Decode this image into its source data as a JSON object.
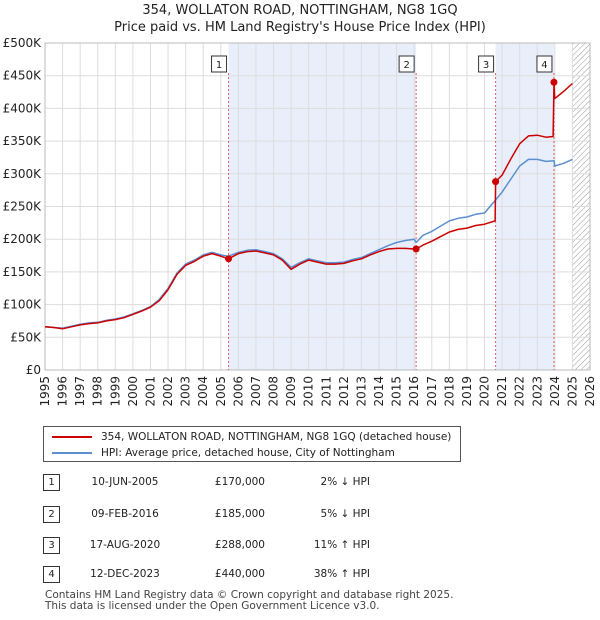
{
  "title_line1": "354, WOLLATON ROAD, NOTTINGHAM, NG8 1GQ",
  "title_line2": "Price paid vs. HM Land Registry's House Price Index (HPI)",
  "colors": {
    "property_line": "#cc0000",
    "hpi_line": "#5b8fd0",
    "shade": "#e8eefa",
    "marker_line": "#e06060",
    "grid": "#dddddd"
  },
  "legend": {
    "property": "354, WOLLATON ROAD, NOTTINGHAM, NG8 1GQ (detached house)",
    "hpi": "HPI: Average price, detached house, City of Nottingham"
  },
  "transactions": [
    {
      "num": "1",
      "date": "10-JUN-2005",
      "price": "£170,000",
      "hpi": "2% ↓ HPI"
    },
    {
      "num": "2",
      "date": "09-FEB-2016",
      "price": "£185,000",
      "hpi": "5% ↓ HPI"
    },
    {
      "num": "3",
      "date": "17-AUG-2020",
      "price": "£288,000",
      "hpi": "11% ↑ HPI"
    },
    {
      "num": "4",
      "date": "12-DEC-2023",
      "price": "£440,000",
      "hpi": "38% ↑ HPI"
    }
  ],
  "footer_line1": "Contains HM Land Registry data © Crown copyright and database right 2025.",
  "footer_line2": "This data is licensed under the Open Government Licence v3.0.",
  "chart_data": {
    "type": "line",
    "title": "354, WOLLATON ROAD, NOTTINGHAM, NG8 1GQ — Price paid vs. HM Land Registry's House Price Index (HPI)",
    "xlim": [
      1995,
      2026
    ],
    "ylim": [
      0,
      500000
    ],
    "x_ticks": [
      1995,
      1996,
      1997,
      1998,
      1999,
      2000,
      2001,
      2002,
      2003,
      2004,
      2005,
      2006,
      2007,
      2008,
      2009,
      2010,
      2011,
      2012,
      2013,
      2014,
      2015,
      2016,
      2017,
      2018,
      2019,
      2020,
      2021,
      2022,
      2023,
      2024,
      2025,
      2026
    ],
    "y_ticks": [
      0,
      50000,
      100000,
      150000,
      200000,
      250000,
      300000,
      350000,
      400000,
      450000,
      500000
    ],
    "y_tick_labels": [
      "£0",
      "£50K",
      "£100K",
      "£150K",
      "£200K",
      "£250K",
      "£300K",
      "£350K",
      "£400K",
      "£450K",
      "£500K"
    ],
    "shaded_ranges": [
      [
        2005.44,
        2016.11
      ],
      [
        2020.63,
        2023.95
      ]
    ],
    "future_hatch_from": 2025.0,
    "sales": [
      {
        "label": "1",
        "x": 2005.44,
        "y": 170000
      },
      {
        "label": "2",
        "x": 2016.11,
        "y": 185000
      },
      {
        "label": "3",
        "x": 2020.63,
        "y": 288000
      },
      {
        "label": "4",
        "x": 2023.95,
        "y": 440000
      }
    ],
    "series": [
      {
        "name": "HPI: Average price, detached house, City of Nottingham",
        "color": "#5b8fd0",
        "x": [
          1995,
          1995.5,
          1996,
          1996.5,
          1997,
          1997.5,
          1998,
          1998.5,
          1999,
          1999.5,
          2000,
          2000.5,
          2001,
          2001.5,
          2002,
          2002.5,
          2003,
          2003.5,
          2004,
          2004.5,
          2005,
          2005.44,
          2006,
          2006.5,
          2007,
          2007.5,
          2008,
          2008.5,
          2009,
          2009.5,
          2010,
          2010.5,
          2011,
          2011.5,
          2012,
          2012.5,
          2013,
          2013.5,
          2014,
          2014.5,
          2015,
          2015.5,
          2016,
          2016.11,
          2016.5,
          2017,
          2017.5,
          2018,
          2018.5,
          2019,
          2019.5,
          2020,
          2020.63,
          2021,
          2021.5,
          2022,
          2022.5,
          2023,
          2023.5,
          2023.95,
          2024,
          2024.5,
          2025
        ],
        "y": [
          66000,
          65000,
          64000,
          67000,
          70000,
          72000,
          73000,
          76000,
          78000,
          81000,
          86000,
          91000,
          97000,
          108000,
          125000,
          148000,
          162000,
          168000,
          176000,
          180000,
          176000,
          174000,
          180000,
          183000,
          184000,
          181000,
          178000,
          170000,
          157000,
          164000,
          170000,
          167000,
          164000,
          164000,
          165000,
          169000,
          172000,
          178000,
          184000,
          190000,
          195000,
          198000,
          200000,
          195000,
          206000,
          212000,
          220000,
          228000,
          232000,
          234000,
          238000,
          240000,
          260000,
          272000,
          292000,
          312000,
          322000,
          322000,
          319000,
          320000,
          312000,
          316000,
          322000
        ]
      },
      {
        "name": "354, WOLLATON ROAD, NOTTINGHAM, NG8 1GQ (detached house)",
        "color": "#cc0000",
        "x": [
          1995,
          1995.5,
          1996,
          1996.5,
          1997,
          1997.5,
          1998,
          1998.5,
          1999,
          1999.5,
          2000,
          2000.5,
          2001,
          2001.5,
          2002,
          2002.5,
          2003,
          2003.5,
          2004,
          2004.5,
          2005,
          2005.44,
          2006,
          2006.5,
          2007,
          2007.5,
          2008,
          2008.5,
          2009,
          2009.5,
          2010,
          2010.5,
          2011,
          2011.5,
          2012,
          2012.5,
          2013,
          2013.5,
          2014,
          2014.5,
          2015,
          2015.5,
          2016,
          2016.11,
          2016.5,
          2017,
          2017.5,
          2018,
          2018.5,
          2019,
          2019.5,
          2020,
          2020.6,
          2020.63,
          2021,
          2021.5,
          2022,
          2022.5,
          2023,
          2023.5,
          2023.9,
          2023.95,
          2024,
          2024.5,
          2025
        ],
        "y": [
          66000,
          65000,
          63000,
          66000,
          69000,
          71000,
          72000,
          75000,
          77000,
          80000,
          85000,
          90000,
          96000,
          106000,
          123000,
          146000,
          160000,
          166000,
          174000,
          178000,
          174000,
          170000,
          178000,
          181000,
          182000,
          179000,
          176000,
          168000,
          154000,
          162000,
          168000,
          165000,
          162000,
          162000,
          163000,
          167000,
          170000,
          176000,
          181000,
          185000,
          186000,
          186000,
          185000,
          185000,
          191000,
          197000,
          204000,
          211000,
          215000,
          217000,
          221000,
          223000,
          228000,
          288000,
          298000,
          323000,
          346000,
          358000,
          359000,
          356000,
          357000,
          440000,
          415000,
          426000,
          438000
        ]
      }
    ]
  }
}
